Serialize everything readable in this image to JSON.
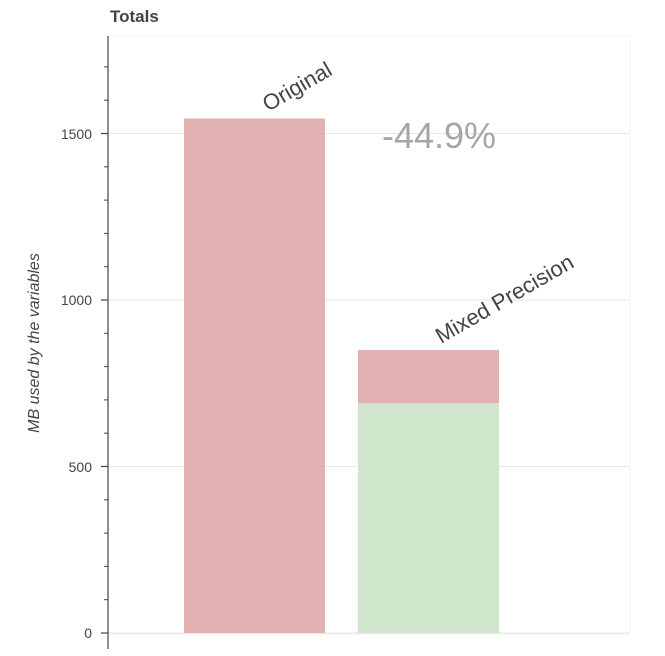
{
  "chart_data": {
    "type": "bar",
    "title": "Totals",
    "xlabel": "",
    "ylabel": "MB used by the variables",
    "ylim": [
      0,
      1800
    ],
    "yticks": [
      0,
      500,
      1000,
      1500
    ],
    "categories": [
      "Original",
      "Mixed Precision"
    ],
    "stacked": true,
    "series": [
      {
        "values": [
          1545,
          690
        ],
        "color": "#cfe6cc"
      },
      {
        "values": [
          0,
          160
        ],
        "color": "#e2b1b2"
      }
    ],
    "bar_colors": {
      "original": "#e2b1b2"
    },
    "annotations": [
      {
        "text": "-44.9%",
        "category": "Mixed Precision",
        "y": 1500
      }
    ],
    "grid": true,
    "legend": false
  },
  "ticks": {
    "t0": "0",
    "t1": "500",
    "t2": "1000",
    "t3": "1500"
  }
}
